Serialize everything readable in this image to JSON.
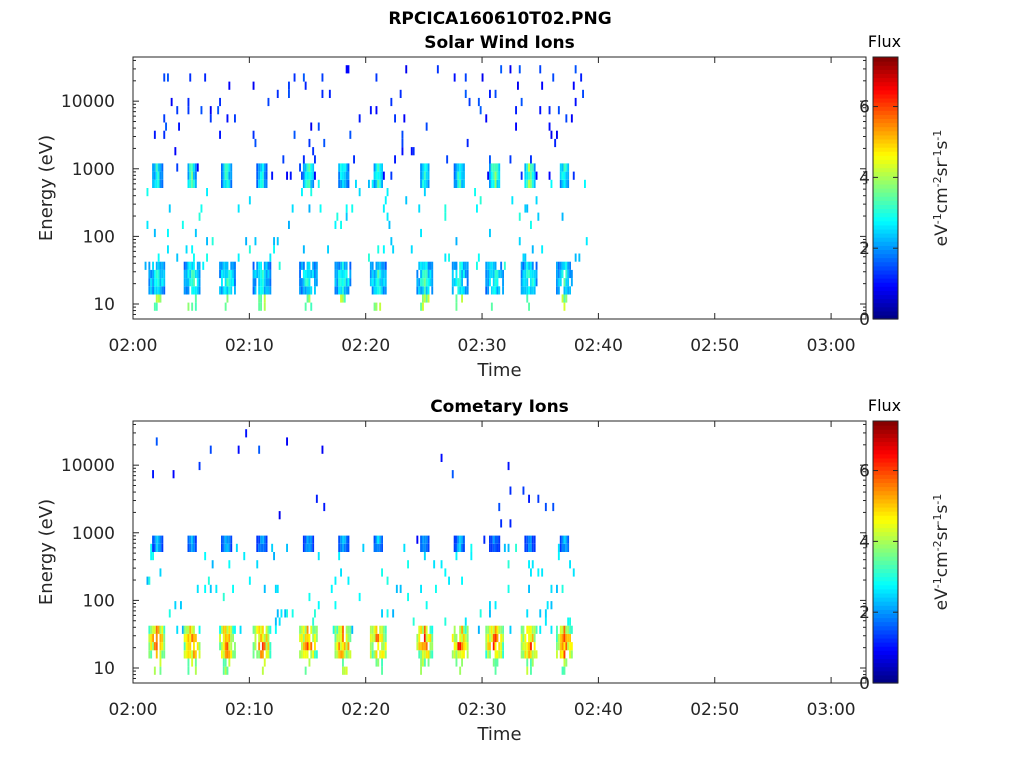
{
  "figure": {
    "title": "RPCICA160610T02.PNG"
  },
  "colors": {
    "axis": "#262626",
    "colormap": "jet"
  },
  "colorbar": {
    "label": "Flux",
    "unit_base": [
      "eV",
      "cm",
      "sr",
      "s"
    ],
    "unit_exp": [
      "-1",
      "-2",
      "-1",
      "-1"
    ],
    "range": [
      0,
      7.4
    ],
    "ticks": [
      "0",
      "2",
      "4",
      "6"
    ]
  },
  "chart_data": [
    {
      "type": "heatmap",
      "title": "Solar Wind Ions",
      "xlabel": "Time",
      "ylabel": "Energy (eV)",
      "xticks": [
        "02:00",
        "02:10",
        "02:20",
        "02:30",
        "02:40",
        "02:50",
        "03:00"
      ],
      "xlim": [
        "02:00",
        "03:03"
      ],
      "yscale": "log",
      "ylim": [
        6,
        45000
      ],
      "yticks": [
        "10",
        "100",
        "1000",
        "10000"
      ],
      "grid": false,
      "period_min": 3.3,
      "data_end": "02:39",
      "bursts": [
        {
          "t": "02:02",
          "energy_eV": 800,
          "flux": 3.2
        },
        {
          "t": "02:05",
          "energy_eV": 800,
          "flux": 3.4
        },
        {
          "t": "02:08",
          "energy_eV": 800,
          "flux": 3.3
        },
        {
          "t": "02:11",
          "energy_eV": 800,
          "flux": 3.0
        },
        {
          "t": "02:15",
          "energy_eV": 800,
          "flux": 3.6
        },
        {
          "t": "02:18",
          "energy_eV": 800,
          "flux": 3.2
        },
        {
          "t": "02:21",
          "energy_eV": 800,
          "flux": 3.3
        },
        {
          "t": "02:25",
          "energy_eV": 800,
          "flux": 3.1
        },
        {
          "t": "02:28",
          "energy_eV": 800,
          "flux": 3.4
        },
        {
          "t": "02:31",
          "energy_eV": 800,
          "flux": 3.8
        },
        {
          "t": "02:34",
          "energy_eV": 800,
          "flux": 3.9
        },
        {
          "t": "02:37",
          "energy_eV": 800,
          "flux": 3.3
        }
      ],
      "low_energy_flux": 3.4
    },
    {
      "type": "heatmap",
      "title": "Cometary Ions",
      "xlabel": "Time",
      "ylabel": "Energy (eV)",
      "xticks": [
        "02:00",
        "02:10",
        "02:20",
        "02:30",
        "02:40",
        "02:50",
        "03:00"
      ],
      "xlim": [
        "02:00",
        "03:03"
      ],
      "yscale": "log",
      "ylim": [
        6,
        45000
      ],
      "yticks": [
        "10",
        "100",
        "1000",
        "10000"
      ],
      "grid": false,
      "period_min": 3.3,
      "data_end": "02:38",
      "bursts": [
        {
          "t": "02:02",
          "energy_eV": 750,
          "flux": 2.4
        },
        {
          "t": "02:05",
          "energy_eV": 750,
          "flux": 2.2
        },
        {
          "t": "02:08",
          "energy_eV": 750,
          "flux": 2.4
        },
        {
          "t": "02:11",
          "energy_eV": 750,
          "flux": 2.1
        },
        {
          "t": "02:15",
          "energy_eV": 750,
          "flux": 2.3
        },
        {
          "t": "02:18",
          "energy_eV": 750,
          "flux": 2.3
        },
        {
          "t": "02:21",
          "energy_eV": 750,
          "flux": 2.4
        },
        {
          "t": "02:25",
          "energy_eV": 750,
          "flux": 2.2
        },
        {
          "t": "02:28",
          "energy_eV": 750,
          "flux": 2.4
        },
        {
          "t": "02:31",
          "energy_eV": 750,
          "flux": 2.0
        },
        {
          "t": "02:34",
          "energy_eV": 750,
          "flux": 2.1
        },
        {
          "t": "02:37",
          "energy_eV": 750,
          "flux": 2.3
        }
      ],
      "low_energy_flux": 6.3
    }
  ]
}
